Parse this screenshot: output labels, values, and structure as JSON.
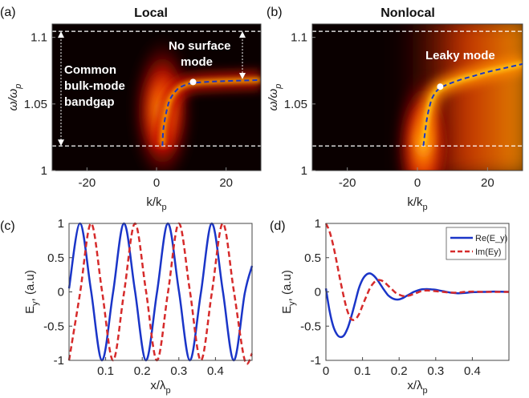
{
  "colors": {
    "blue": "#1a35c8",
    "red": "#d62b2b",
    "heat_dark": "#0a0000",
    "heat_mid": "#cc1400",
    "heat_hot": "#ffd21e",
    "guide": "#ffffff"
  },
  "chart_data": [
    {
      "type": "heatmap",
      "panel_label": "(a)",
      "title": "Local",
      "xlabel_main": "k/k",
      "xlabel_sub": "p",
      "ylabel": "ω/ω_p",
      "xlim": [
        -30,
        30
      ],
      "ylim": [
        1.0,
        1.11
      ],
      "xticks": [
        -20,
        0,
        20
      ],
      "xtick_labels": [
        "-20",
        "0",
        "20"
      ],
      "yticks": [
        1.0,
        1.05,
        1.1
      ],
      "ytick_labels": [
        "1",
        "1.05",
        "1.1"
      ],
      "bandgap_lower": 1.0185,
      "bandgap_upper": 1.1045,
      "dispersion": {
        "x": [
          1.7,
          2,
          3,
          4,
          6,
          8,
          10,
          14,
          20,
          30
        ],
        "y": [
          1.0185,
          1.032,
          1.046,
          1.054,
          1.061,
          1.064,
          1.0655,
          1.0665,
          1.0672,
          1.068
        ]
      },
      "marker": {
        "x": 10.5,
        "y": 1.0665
      },
      "annotations": {
        "bandgap_text": [
          "Common",
          "bulk-mode",
          "bandgap"
        ],
        "mode_text": [
          "No surface",
          "mode"
        ]
      }
    },
    {
      "type": "heatmap",
      "panel_label": "(b)",
      "title": "Nonlocal",
      "xlabel_main": "k/k",
      "xlabel_sub": "p",
      "ylabel": "ω/ω_p",
      "xlim": [
        -30,
        30
      ],
      "ylim": [
        1.0,
        1.11
      ],
      "xticks": [
        -20,
        0,
        20
      ],
      "xtick_labels": [
        "-20",
        "0",
        "20"
      ],
      "yticks": [
        1.0,
        1.05,
        1.1
      ],
      "ytick_labels": [
        "1",
        "1.05",
        "1.1"
      ],
      "bandgap_lower": 1.0185,
      "bandgap_upper": 1.1045,
      "dispersion": {
        "x": [
          1.7,
          2,
          2.5,
          3,
          4,
          5,
          6,
          8,
          12,
          16,
          20,
          25,
          30
        ],
        "y": [
          1.0185,
          1.025,
          1.035,
          1.043,
          1.053,
          1.058,
          1.061,
          1.064,
          1.068,
          1.071,
          1.074,
          1.077,
          1.08
        ]
      },
      "marker": {
        "x": 6.5,
        "y": 1.063
      },
      "annotations": {
        "mode_text": [
          "Leaky mode"
        ]
      }
    },
    {
      "type": "line",
      "panel_label": "(c)",
      "xlabel": "x/λ_p",
      "ylabel": "E_y, (a.u)",
      "xlim": [
        0,
        0.5
      ],
      "ylim": [
        -1,
        1
      ],
      "xticks": [
        0.1,
        0.2,
        0.3,
        0.4
      ],
      "xtick_labels": [
        "0.1",
        "0.2",
        "0.3",
        "0.4"
      ],
      "yticks": [
        -1,
        -0.5,
        0,
        0.5,
        1
      ],
      "ytick_labels": [
        "-1",
        "-0.5",
        "0",
        "0.5",
        "1"
      ],
      "series": [
        {
          "name": "Re(E_y)",
          "style": "solid",
          "color": "#1a35c8",
          "x": [
            0,
            0.03,
            0.06,
            0.09,
            0.12,
            0.15,
            0.18,
            0.21,
            0.24,
            0.27,
            0.3,
            0.33,
            0.36,
            0.39,
            0.42,
            0.45,
            0.48,
            0.5
          ],
          "y": [
            0.05,
            1.0,
            0.02,
            -1.0,
            -0.02,
            1.0,
            0.02,
            -1.0,
            -0.02,
            1.0,
            0.02,
            -1.0,
            -0.02,
            1.0,
            0.02,
            -1.0,
            -0.02,
            0.38
          ]
        },
        {
          "name": "Im(Ey)",
          "style": "dashed",
          "color": "#d62b2b",
          "x": [
            0,
            0.03,
            0.06,
            0.09,
            0.12,
            0.15,
            0.18,
            0.21,
            0.24,
            0.27,
            0.3,
            0.33,
            0.36,
            0.39,
            0.42,
            0.45,
            0.48,
            0.5
          ],
          "y": [
            -1.0,
            -0.02,
            1.0,
            0.02,
            -1.0,
            -0.02,
            1.0,
            0.02,
            -1.0,
            -0.02,
            1.0,
            0.02,
            -1.0,
            -0.02,
            1.0,
            0.02,
            -1.0,
            -0.9
          ]
        }
      ]
    },
    {
      "type": "line",
      "panel_label": "(d)",
      "xlabel": "x/λ_p",
      "ylabel": "E_y, (a.u)",
      "xlim": [
        0,
        0.5
      ],
      "ylim": [
        -1,
        1
      ],
      "xticks": [
        0,
        0.1,
        0.2,
        0.3,
        0.4
      ],
      "xtick_labels": [
        "0",
        "0.1",
        "0.2",
        "0.3",
        "0.4"
      ],
      "yticks": [
        -1,
        -0.5,
        0,
        0.5,
        1
      ],
      "ytick_labels": [
        "-1",
        "-0.5",
        "0",
        "0.5",
        "1"
      ],
      "legend": {
        "placement": "top-right",
        "entries": [
          "Re(E_y)",
          "Im(Ey)"
        ]
      },
      "series": [
        {
          "name": "Re(E_y)",
          "style": "solid",
          "color": "#1a35c8",
          "x": [
            0,
            0.01,
            0.02,
            0.03,
            0.04,
            0.05,
            0.06,
            0.07,
            0.08,
            0.09,
            0.1,
            0.11,
            0.12,
            0.13,
            0.14,
            0.15,
            0.16,
            0.17,
            0.18,
            0.19,
            0.2,
            0.21,
            0.22,
            0.23,
            0.24,
            0.25,
            0.26,
            0.27,
            0.28,
            0.29,
            0.3,
            0.32,
            0.34,
            0.36,
            0.38,
            0.4,
            0.43,
            0.46,
            0.5
          ],
          "y": [
            0.05,
            -0.28,
            -0.5,
            -0.62,
            -0.66,
            -0.63,
            -0.52,
            -0.35,
            -0.15,
            0.05,
            0.18,
            0.25,
            0.27,
            0.24,
            0.18,
            0.1,
            0.02,
            -0.05,
            -0.09,
            -0.11,
            -0.11,
            -0.09,
            -0.06,
            -0.03,
            0.0,
            0.02,
            0.035,
            0.04,
            0.04,
            0.035,
            0.03,
            0.01,
            -0.01,
            -0.02,
            -0.015,
            -0.005,
            0.0,
            0.005,
            0.0
          ]
        },
        {
          "name": "Im(Ey)",
          "style": "dashed",
          "color": "#d62b2b",
          "x": [
            0,
            0.01,
            0.02,
            0.03,
            0.04,
            0.05,
            0.06,
            0.07,
            0.08,
            0.09,
            0.1,
            0.11,
            0.12,
            0.13,
            0.14,
            0.15,
            0.16,
            0.17,
            0.18,
            0.19,
            0.2,
            0.21,
            0.22,
            0.23,
            0.24,
            0.25,
            0.26,
            0.27,
            0.28,
            0.29,
            0.3,
            0.32,
            0.34,
            0.36,
            0.38,
            0.4,
            0.43,
            0.46,
            0.5
          ],
          "y": [
            1.0,
            0.88,
            0.68,
            0.42,
            0.15,
            -0.1,
            -0.3,
            -0.4,
            -0.4,
            -0.33,
            -0.2,
            -0.07,
            0.05,
            0.13,
            0.17,
            0.17,
            0.14,
            0.09,
            0.04,
            -0.01,
            -0.04,
            -0.06,
            -0.06,
            -0.05,
            -0.03,
            -0.01,
            0.01,
            0.02,
            0.02,
            0.015,
            0.01,
            0.0,
            -0.01,
            -0.01,
            0.0,
            0.005,
            0.0,
            0.0,
            0.0
          ]
        }
      ]
    }
  ]
}
